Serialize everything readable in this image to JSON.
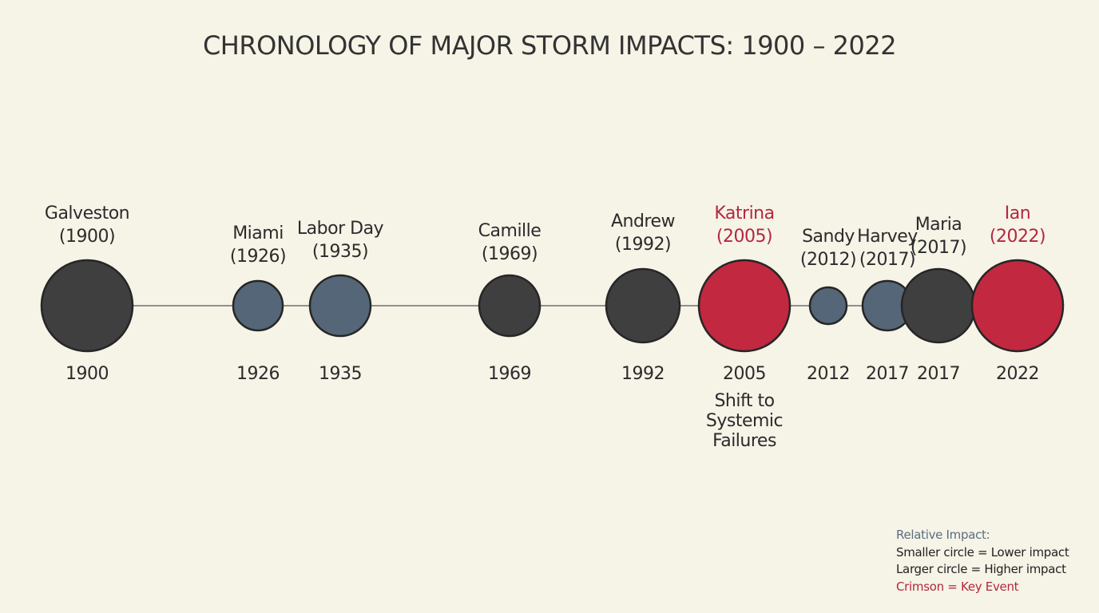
{
  "title": "CHRONOLOGY OF MAJOR STORM IMPACTS: 1900 – 2022",
  "colors": {
    "background": "#f6f3e7",
    "major": "#3f3f3f",
    "minor": "#546678",
    "key": "#c2283f",
    "key_text": "#b3283e",
    "outline": "#262626",
    "line": "#555555"
  },
  "events": [
    {
      "id": "galveston",
      "name": "Galveston",
      "year_label": "(1900)",
      "axis_label": "1900",
      "impact": 5,
      "style": "major"
    },
    {
      "id": "miami",
      "name": "Miami",
      "year_label": "(1926)",
      "axis_label": "1926",
      "impact": 2,
      "style": "minor"
    },
    {
      "id": "labor-day",
      "name": "Labor Day",
      "year_label": "(1935)",
      "axis_label": "1935",
      "impact": 3,
      "style": "minor"
    },
    {
      "id": "camille",
      "name": "Camille",
      "year_label": "(1969)",
      "axis_label": "1969",
      "impact": 3,
      "style": "major"
    },
    {
      "id": "andrew",
      "name": "Andrew",
      "year_label": "(1992)",
      "axis_label": "1992",
      "impact": 4,
      "style": "major"
    },
    {
      "id": "katrina",
      "name": "Katrina",
      "year_label": "(2005)",
      "axis_label": "2005",
      "impact": 5,
      "style": "key",
      "note": [
        "Shift to",
        "Systemic",
        "Failures"
      ]
    },
    {
      "id": "sandy",
      "name": "Sandy",
      "year_label": "(2012)",
      "axis_label": "2012",
      "impact": 1,
      "style": "minor"
    },
    {
      "id": "harvey",
      "name": "Harvey",
      "year_label": "(2017)",
      "axis_label": "2017",
      "impact": 2,
      "style": "minor"
    },
    {
      "id": "maria",
      "name": "Maria",
      "year_label": "(2017)",
      "axis_label": "2017",
      "impact": 4,
      "style": "major"
    },
    {
      "id": "ian",
      "name": "Ian",
      "year_label": "(2022)",
      "axis_label": "2022",
      "impact": 5,
      "style": "key"
    }
  ],
  "legend": {
    "title": "Relative Impact:",
    "small": "Smaller circle = Lower impact",
    "large": "Larger circle = Higher impact",
    "key": "Crimson = Key Event"
  }
}
